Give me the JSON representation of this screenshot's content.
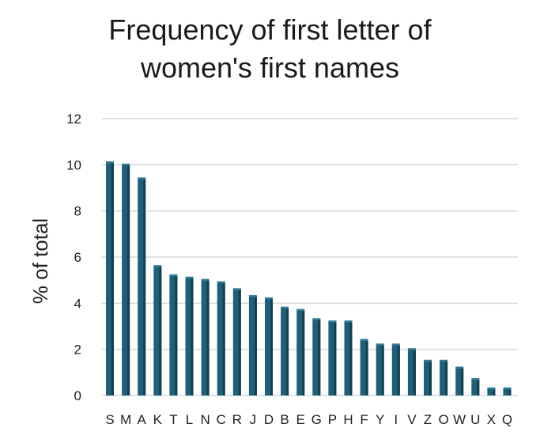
{
  "chart_data": {
    "type": "bar",
    "title": [
      "Frequency of first letter of",
      "women's first names"
    ],
    "xlabel": "",
    "ylabel": "% of total",
    "categories": [
      "S",
      "M",
      "A",
      "K",
      "T",
      "L",
      "N",
      "C",
      "R",
      "J",
      "D",
      "B",
      "E",
      "G",
      "P",
      "H",
      "F",
      "Y",
      "I",
      "V",
      "Z",
      "O",
      "W",
      "U",
      "X",
      "Q"
    ],
    "values": [
      10.1,
      10.0,
      9.4,
      5.6,
      5.2,
      5.1,
      5.0,
      4.9,
      4.6,
      4.3,
      4.2,
      3.8,
      3.7,
      3.3,
      3.2,
      3.2,
      2.4,
      2.2,
      2.2,
      2.0,
      1.5,
      1.5,
      1.2,
      0.7,
      0.3,
      0.3
    ],
    "yticks": [
      "0",
      "2",
      "4",
      "6",
      "8",
      "10",
      "12"
    ],
    "ylim": [
      0,
      12
    ],
    "grid": true,
    "bar_color": "#1f5f7a",
    "bar_color_dark": "#123f52",
    "grid_color": "#d9d9d9"
  }
}
